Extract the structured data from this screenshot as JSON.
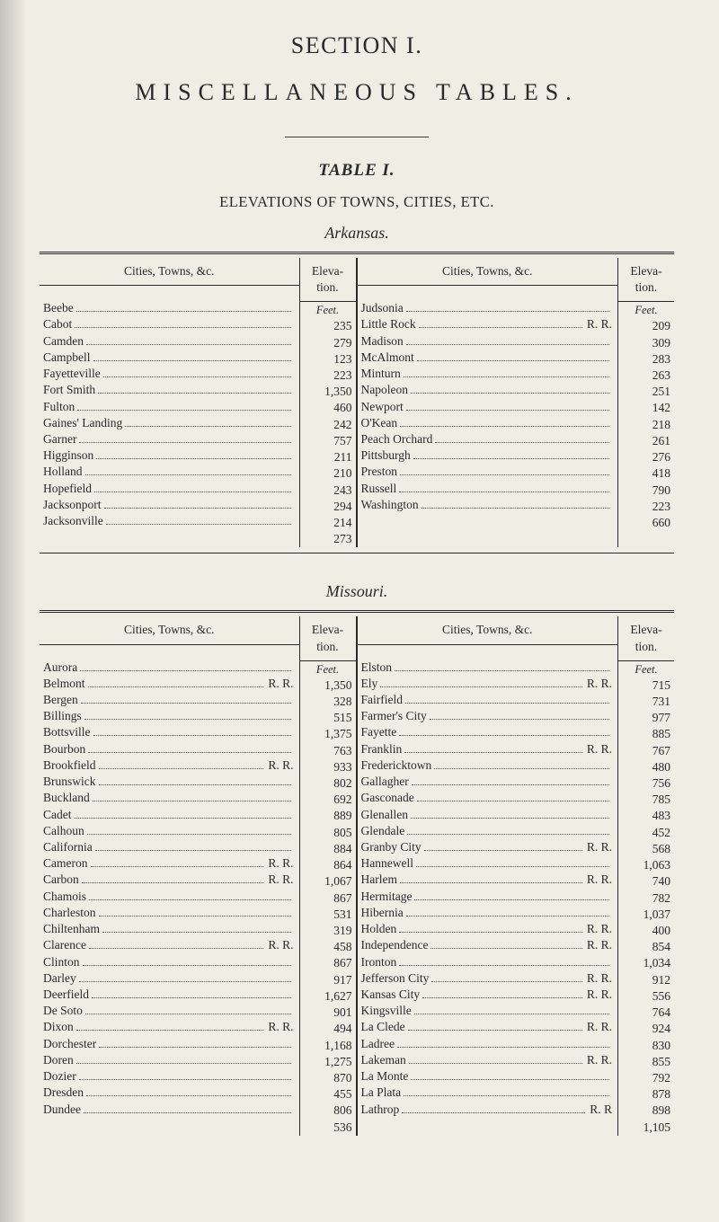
{
  "titles": {
    "section": "SECTION I.",
    "misc": "MISCELLANEOUS  TABLES.",
    "tableI": "TABLE I.",
    "elev": "ELEVATIONS OF TOWNS, CITIES, ETC."
  },
  "header": {
    "city": "Cities, Towns, &c.",
    "elev_line1": "Eleva-",
    "elev_line2": "tion.",
    "unit": "Feet."
  },
  "states": [
    {
      "name": "Arkansas.",
      "left": [
        {
          "city": "Beebe",
          "suffix": "",
          "elev": "235"
        },
        {
          "city": "Cabot",
          "suffix": "",
          "elev": "279"
        },
        {
          "city": "Camden",
          "suffix": "",
          "elev": "123"
        },
        {
          "city": "Campbell",
          "suffix": "",
          "elev": "223"
        },
        {
          "city": "Fayetteville",
          "suffix": "",
          "elev": "1,350"
        },
        {
          "city": "Fort Smith",
          "suffix": "",
          "elev": "460"
        },
        {
          "city": "Fulton",
          "suffix": "",
          "elev": "242"
        },
        {
          "city": "Gaines' Landing",
          "suffix": "",
          "elev": "757"
        },
        {
          "city": "Garner",
          "suffix": "",
          "elev": "211"
        },
        {
          "city": "Higginson",
          "suffix": "",
          "elev": "210"
        },
        {
          "city": "Holland",
          "suffix": "",
          "elev": "243"
        },
        {
          "city": "Hopefield",
          "suffix": "",
          "elev": "294"
        },
        {
          "city": "Jacksonport",
          "suffix": "",
          "elev": "214"
        },
        {
          "city": "Jacksonville",
          "suffix": "",
          "elev": "273"
        }
      ],
      "right": [
        {
          "city": "Judsonia",
          "suffix": "",
          "elev": "209"
        },
        {
          "city": "Little Rock",
          "suffix": "R. R.",
          "elev": "309"
        },
        {
          "city": "Madison",
          "suffix": "",
          "elev": "283"
        },
        {
          "city": "McAlmont",
          "suffix": "",
          "elev": "263"
        },
        {
          "city": "Minturn",
          "suffix": "",
          "elev": "251"
        },
        {
          "city": "Napoleon",
          "suffix": "",
          "elev": "142"
        },
        {
          "city": "Newport",
          "suffix": "",
          "elev": "218"
        },
        {
          "city": "O'Kean",
          "suffix": "",
          "elev": "261"
        },
        {
          "city": "Peach Orchard",
          "suffix": "",
          "elev": "276"
        },
        {
          "city": "Pittsburgh",
          "suffix": "",
          "elev": "418"
        },
        {
          "city": "Preston",
          "suffix": "",
          "elev": "790"
        },
        {
          "city": "Russell",
          "suffix": "",
          "elev": "223"
        },
        {
          "city": "Washington",
          "suffix": "",
          "elev": "660"
        }
      ]
    },
    {
      "name": "Missouri.",
      "left": [
        {
          "city": "Aurora",
          "suffix": "",
          "elev": "1,350"
        },
        {
          "city": "Belmont",
          "suffix": "R. R.",
          "elev": "328"
        },
        {
          "city": "Bergen",
          "suffix": "",
          "elev": "515"
        },
        {
          "city": "Billings",
          "suffix": "",
          "elev": "1,375"
        },
        {
          "city": "Bottsville",
          "suffix": "",
          "elev": "763"
        },
        {
          "city": "Bourbon",
          "suffix": "",
          "elev": "933"
        },
        {
          "city": "Brookfield",
          "suffix": "R. R.",
          "elev": "802"
        },
        {
          "city": "Brunswick",
          "suffix": "",
          "elev": "692"
        },
        {
          "city": "Buckland",
          "suffix": "",
          "elev": "889"
        },
        {
          "city": "Cadet",
          "suffix": "",
          "elev": "805"
        },
        {
          "city": "Calhoun",
          "suffix": "",
          "elev": "884"
        },
        {
          "city": "California",
          "suffix": "",
          "elev": "864"
        },
        {
          "city": "Cameron",
          "suffix": "R. R.",
          "elev": "1,067"
        },
        {
          "city": "Carbon",
          "suffix": "R. R.",
          "elev": "867"
        },
        {
          "city": "Chamois",
          "suffix": "",
          "elev": "531"
        },
        {
          "city": "Charleston",
          "suffix": "",
          "elev": "319"
        },
        {
          "city": "Chiltenham",
          "suffix": "",
          "elev": "458"
        },
        {
          "city": "Clarence",
          "suffix": "R. R.",
          "elev": "867"
        },
        {
          "city": "Clinton",
          "suffix": "",
          "elev": "917"
        },
        {
          "city": "Darley",
          "suffix": "",
          "elev": "1,627"
        },
        {
          "city": "Deerfield",
          "suffix": "",
          "elev": "901"
        },
        {
          "city": "De Soto",
          "suffix": "",
          "elev": "494"
        },
        {
          "city": "Dixon",
          "suffix": "R. R.",
          "elev": "1,168"
        },
        {
          "city": "Dorchester",
          "suffix": "",
          "elev": "1,275"
        },
        {
          "city": "Doren",
          "suffix": "",
          "elev": "870"
        },
        {
          "city": "Dozier",
          "suffix": "",
          "elev": "455"
        },
        {
          "city": "Dresden",
          "suffix": "",
          "elev": "806"
        },
        {
          "city": "Dundee",
          "suffix": "",
          "elev": "536"
        }
      ],
      "right": [
        {
          "city": "Elston",
          "suffix": "",
          "elev": "715"
        },
        {
          "city": "Ely",
          "suffix": "R. R.",
          "elev": "731"
        },
        {
          "city": "Fairfield",
          "suffix": "",
          "elev": "977"
        },
        {
          "city": "Farmer's City",
          "suffix": "",
          "elev": "885"
        },
        {
          "city": "Fayette",
          "suffix": "",
          "elev": "767"
        },
        {
          "city": "Franklin",
          "suffix": "R. R.",
          "elev": "480"
        },
        {
          "city": "Fredericktown",
          "suffix": "",
          "elev": "756"
        },
        {
          "city": "Gallagher",
          "suffix": "",
          "elev": "785"
        },
        {
          "city": "Gasconade",
          "suffix": "",
          "elev": "483"
        },
        {
          "city": "Glenallen",
          "suffix": "",
          "elev": "452"
        },
        {
          "city": "Glendale",
          "suffix": "",
          "elev": "568"
        },
        {
          "city": "Granby City",
          "suffix": "R. R.",
          "elev": "1,063"
        },
        {
          "city": "Hannewell",
          "suffix": "",
          "elev": "740"
        },
        {
          "city": "Harlem",
          "suffix": "R. R.",
          "elev": "782"
        },
        {
          "city": "Hermitage",
          "suffix": "",
          "elev": "1,037"
        },
        {
          "city": "Hibernia",
          "suffix": "",
          "elev": "400"
        },
        {
          "city": "Holden",
          "suffix": "R. R.",
          "elev": "854"
        },
        {
          "city": "Independence",
          "suffix": "R. R.",
          "elev": "1,034"
        },
        {
          "city": "Ironton",
          "suffix": "",
          "elev": "912"
        },
        {
          "city": "Jefferson City",
          "suffix": "R. R.",
          "elev": "556"
        },
        {
          "city": "Kansas City",
          "suffix": "R. R.",
          "elev": "764"
        },
        {
          "city": "Kingsville",
          "suffix": "",
          "elev": "924"
        },
        {
          "city": "La Clede",
          "suffix": "R. R.",
          "elev": "830"
        },
        {
          "city": "Ladree",
          "suffix": "",
          "elev": "855"
        },
        {
          "city": "Lakeman",
          "suffix": "R. R.",
          "elev": "792"
        },
        {
          "city": "La Monte",
          "suffix": "",
          "elev": "878"
        },
        {
          "city": "La Plata",
          "suffix": "",
          "elev": "898"
        },
        {
          "city": "Lathrop",
          "suffix": "R. R",
          "elev": "1,105"
        }
      ]
    }
  ]
}
